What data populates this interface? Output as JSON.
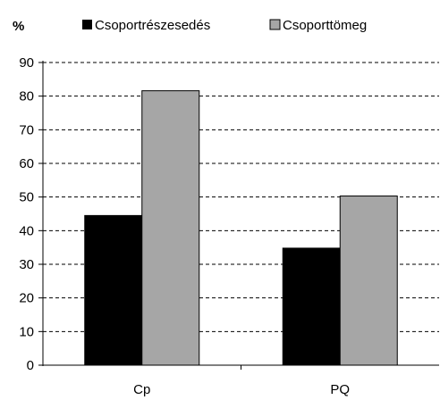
{
  "chart_data": {
    "type": "bar",
    "unit_label": "%",
    "categories": [
      "Cp",
      "PQ"
    ],
    "series": [
      {
        "name": "Csoportrészesedés",
        "values": [
          44.5,
          34.8
        ],
        "color": "#000000"
      },
      {
        "name": "Csoporttömeg",
        "values": [
          81.6,
          50.3
        ],
        "color": "#a6a6a6"
      }
    ],
    "ylim": [
      0,
      90
    ],
    "y_ticks": [
      0,
      10,
      20,
      30,
      40,
      50,
      60,
      70,
      80,
      90
    ],
    "grid": "dashed horizontal",
    "legend_position": "top"
  }
}
